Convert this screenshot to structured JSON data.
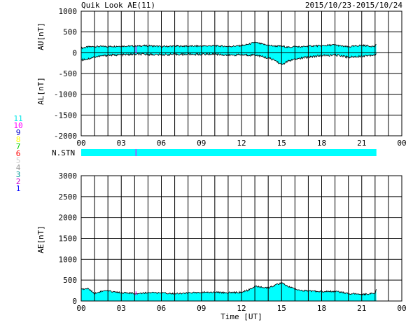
{
  "header": {
    "title": "Quik Look AE(11)",
    "date_range": "2015/10/23-2015/10/24"
  },
  "station_legend": [
    {
      "label": "11",
      "color": "#00e5e5"
    },
    {
      "label": "10",
      "color": "#ff00ff"
    },
    {
      "label": "9",
      "color": "#0000cc"
    },
    {
      "label": "8",
      "color": "#ffff00"
    },
    {
      "label": "7",
      "color": "#00cc00"
    },
    {
      "label": "6",
      "color": "#ff0000"
    },
    {
      "label": "5",
      "color": "#cccccc"
    },
    {
      "label": "4",
      "color": "#999999"
    },
    {
      "label": "3",
      "color": "#009999"
    },
    {
      "label": "2",
      "color": "#cc00cc"
    },
    {
      "label": "1",
      "color": "#0000ff"
    }
  ],
  "colors": {
    "fill": "#00ffff",
    "line": "#000000",
    "marker": "#ff00ff"
  },
  "labels": {
    "nstn": "N.STN",
    "xlabel": "Time [UT]"
  },
  "chart_data": [
    {
      "type": "area",
      "panel": "AU/AL",
      "ylabel_upper": "AU[nT]",
      "ylabel_lower": "AL[nT]",
      "ylim": [
        -2000,
        1000
      ],
      "yticks": [
        1000,
        500,
        0,
        -500,
        -1000,
        -1500,
        -2000
      ],
      "xlim": [
        0,
        24
      ],
      "xticks": [
        "00",
        "03",
        "06",
        "09",
        "12",
        "15",
        "18",
        "21",
        "00"
      ],
      "grid": true,
      "data_end_hour": 22.1,
      "series": [
        {
          "name": "AU",
          "x": [
            0,
            0.5,
            1,
            2,
            3,
            4,
            5,
            6,
            7,
            8,
            9,
            10,
            11,
            12,
            12.5,
            13,
            13.5,
            14,
            14.5,
            15,
            15.5,
            16,
            16.5,
            17,
            18,
            19,
            19.5,
            20,
            21,
            22,
            22.1
          ],
          "values": [
            110,
            140,
            150,
            150,
            160,
            160,
            170,
            150,
            160,
            160,
            160,
            170,
            150,
            170,
            200,
            250,
            210,
            180,
            160,
            160,
            130,
            150,
            140,
            160,
            170,
            190,
            160,
            140,
            180,
            150,
            200
          ]
        },
        {
          "name": "AL",
          "x": [
            0,
            0.5,
            1,
            2,
            3,
            4,
            5,
            6,
            7,
            8,
            9,
            10,
            11,
            12,
            12.5,
            13,
            13.5,
            14,
            14.5,
            15,
            15.5,
            16,
            16.5,
            17,
            18,
            19,
            19.5,
            20,
            21,
            22,
            22.1
          ],
          "values": [
            -170,
            -150,
            -100,
            -60,
            -50,
            -40,
            -40,
            -50,
            -40,
            -40,
            -40,
            -30,
            -60,
            -50,
            -60,
            -50,
            -90,
            -130,
            -180,
            -290,
            -200,
            -160,
            -130,
            -100,
            -70,
            -60,
            -70,
            -110,
            -80,
            -50,
            -40
          ]
        }
      ]
    },
    {
      "type": "area",
      "panel": "AE",
      "ylabel": "AE[nT]",
      "ylim": [
        0,
        3000
      ],
      "yticks": [
        3000,
        2500,
        2000,
        1500,
        1000,
        500,
        0
      ],
      "xlim": [
        0,
        24
      ],
      "xticks": [
        "00",
        "03",
        "06",
        "09",
        "12",
        "15",
        "18",
        "21",
        "00"
      ],
      "xlabel": "Time [UT]",
      "grid": true,
      "data_end_hour": 22.1,
      "series": [
        {
          "name": "AE",
          "x": [
            0,
            0.5,
            1,
            1.5,
            2,
            3,
            4,
            5,
            6,
            7,
            8,
            9,
            10,
            11,
            12,
            12.5,
            13,
            13.5,
            14,
            14.5,
            15,
            15.5,
            16,
            16.5,
            17,
            18,
            19,
            19.5,
            20,
            21,
            22,
            22.1
          ],
          "values": [
            280,
            300,
            180,
            230,
            240,
            200,
            180,
            200,
            190,
            180,
            190,
            210,
            210,
            200,
            210,
            260,
            350,
            330,
            310,
            380,
            430,
            350,
            290,
            250,
            240,
            230,
            230,
            210,
            180,
            160,
            180,
            300
          ]
        }
      ]
    }
  ]
}
